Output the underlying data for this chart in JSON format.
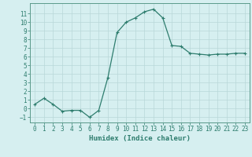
{
  "x": [
    0,
    1,
    2,
    3,
    4,
    5,
    6,
    7,
    8,
    9,
    10,
    11,
    12,
    13,
    14,
    15,
    16,
    17,
    18,
    19,
    20,
    21,
    22,
    23
  ],
  "y": [
    0.5,
    1.2,
    0.5,
    -0.3,
    -0.2,
    -0.2,
    -1.0,
    -0.2,
    3.6,
    8.8,
    10.0,
    10.5,
    11.2,
    11.5,
    10.5,
    7.3,
    7.2,
    6.4,
    6.3,
    6.2,
    6.3,
    6.3,
    6.4,
    6.4
  ],
  "line_color": "#2e7d6e",
  "marker": "+",
  "marker_size": 3,
  "line_width": 0.9,
  "bg_color": "#d6eff0",
  "grid_color": "#b8d8d8",
  "xlabel": "Humidex (Indice chaleur)",
  "xlim": [
    -0.5,
    23.5
  ],
  "ylim": [
    -1.6,
    12.2
  ],
  "yticks": [
    -1,
    0,
    1,
    2,
    3,
    4,
    5,
    6,
    7,
    8,
    9,
    10,
    11
  ],
  "xticks": [
    0,
    1,
    2,
    3,
    4,
    5,
    6,
    7,
    8,
    9,
    10,
    11,
    12,
    13,
    14,
    15,
    16,
    17,
    18,
    19,
    20,
    21,
    22,
    23
  ],
  "tick_fontsize": 5.5,
  "label_fontsize": 6.5,
  "axis_color": "#2e7d6e",
  "spine_color": "#5a9a8a"
}
